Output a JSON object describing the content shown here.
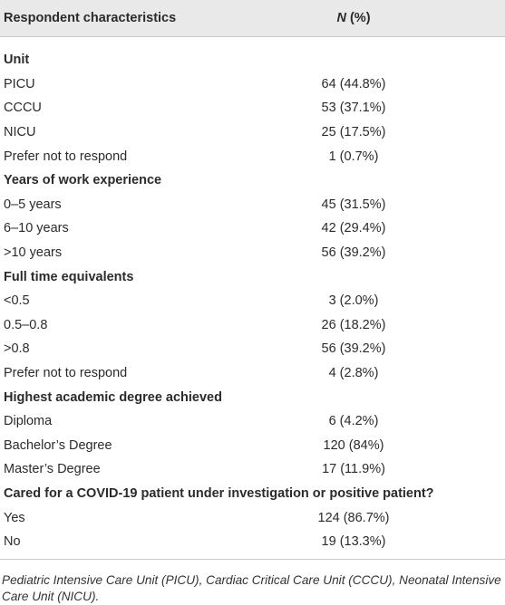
{
  "header": {
    "characteristics": "Respondent characteristics",
    "n": "N",
    "percent": "(%)"
  },
  "sections": [
    {
      "title": "Unit",
      "rows": [
        [
          "PICU",
          "64 (44.8%)"
        ],
        [
          "CCCU",
          "53 (37.1%)"
        ],
        [
          "NICU",
          "25 (17.5%)"
        ],
        [
          "Prefer not to respond",
          "1 (0.7%)"
        ]
      ]
    },
    {
      "title": "Years of work experience",
      "rows": [
        [
          "0–5 years",
          "45 (31.5%)"
        ],
        [
          "6–10 years",
          "42 (29.4%)"
        ],
        [
          ">10 years",
          "56 (39.2%)"
        ]
      ]
    },
    {
      "title": "Full time equivalents",
      "rows": [
        [
          "<0.5",
          "3 (2.0%)"
        ],
        [
          "0.5–0.8",
          "26 (18.2%)"
        ],
        [
          ">0.8",
          "56 (39.2%)"
        ],
        [
          "Prefer not to respond",
          "4 (2.8%)"
        ]
      ]
    },
    {
      "title": "Highest academic degree achieved",
      "rows": [
        [
          "Diploma",
          "6 (4.2%)"
        ],
        [
          "Bachelor’s Degree",
          "120 (84%)"
        ],
        [
          "Master’s Degree",
          "17 (11.9%)"
        ]
      ]
    },
    {
      "title": "Cared for a COVID-19 patient under investigation or positive patient?",
      "rows": [
        [
          "Yes",
          "124 (86.7%)"
        ],
        [
          "No",
          "19 (13.3%)"
        ]
      ]
    }
  ],
  "footnote": "Pediatric Intensive Care Unit (PICU), Cardiac Critical Care Unit (CCCU), Neonatal Intensive Care Unit (NICU)."
}
